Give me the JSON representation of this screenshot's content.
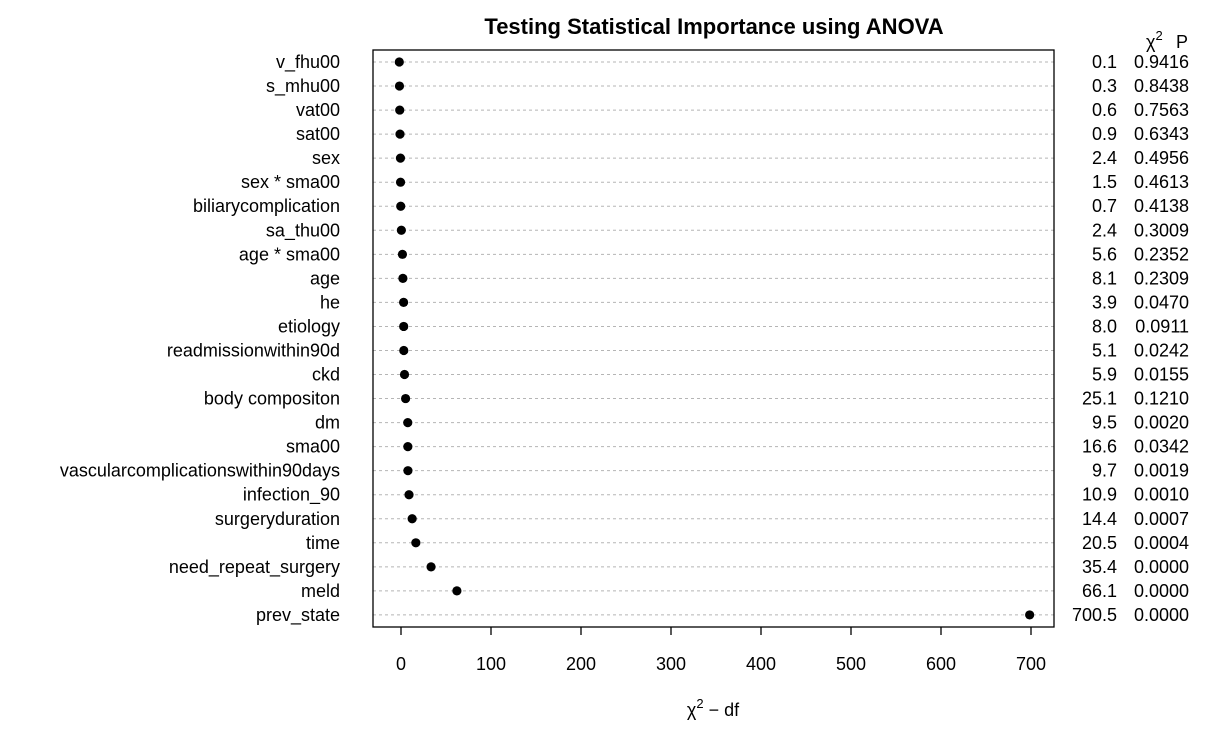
{
  "chart_data": {
    "type": "scatter",
    "title": "Testing Statistical Importance using ANOVA",
    "xlabel": {
      "sym": "χ",
      "sup": "2",
      "rest": " − df"
    },
    "col_headers": {
      "chi2": {
        "sym": "χ",
        "sup": "2"
      },
      "p": "P"
    },
    "xlim": [
      -30,
      730
    ],
    "xticks": [
      0,
      100,
      200,
      300,
      400,
      500,
      600,
      700
    ],
    "grid": true,
    "rows": [
      {
        "label": "v_fhu00",
        "value": -1.9,
        "chi2": "0.1",
        "p": "0.9416"
      },
      {
        "label": "s_mhu00",
        "value": -1.7,
        "chi2": "0.3",
        "p": "0.8438"
      },
      {
        "label": "vat00",
        "value": -1.4,
        "chi2": "0.6",
        "p": "0.7563"
      },
      {
        "label": "sat00",
        "value": -1.1,
        "chi2": "0.9",
        "p": "0.6343"
      },
      {
        "label": "sex",
        "value": -0.6,
        "chi2": "2.4",
        "p": "0.4956"
      },
      {
        "label": "sex * sma00",
        "value": -0.5,
        "chi2": "1.5",
        "p": "0.4613"
      },
      {
        "label": "biliarycomplication",
        "value": -0.3,
        "chi2": "0.7",
        "p": "0.4138"
      },
      {
        "label": "sa_thu00",
        "value": 0.4,
        "chi2": "2.4",
        "p": "0.3009"
      },
      {
        "label": "age * sma00",
        "value": 1.6,
        "chi2": "5.6",
        "p": "0.2352"
      },
      {
        "label": "age",
        "value": 2.1,
        "chi2": "8.1",
        "p": "0.2309"
      },
      {
        "label": "he",
        "value": 2.9,
        "chi2": "3.9",
        "p": "0.0470"
      },
      {
        "label": "etiology",
        "value": 3.0,
        "chi2": "8.0",
        "p": "0.0911"
      },
      {
        "label": "readmissionwithin90d",
        "value": 3.1,
        "chi2": "5.1",
        "p": "0.0242"
      },
      {
        "label": "ckd",
        "value": 3.9,
        "chi2": "5.9",
        "p": "0.0155"
      },
      {
        "label": "body compositon",
        "value": 5.1,
        "chi2": "25.1",
        "p": "0.1210"
      },
      {
        "label": "dm",
        "value": 7.5,
        "chi2": "9.5",
        "p": "0.0020"
      },
      {
        "label": "sma00",
        "value": 7.6,
        "chi2": "16.6",
        "p": "0.0342"
      },
      {
        "label": "vascularcomplicationswithin90days",
        "value": 7.7,
        "chi2": "9.7",
        "p": "0.0019"
      },
      {
        "label": "infection_90",
        "value": 8.9,
        "chi2": "10.9",
        "p": "0.0010"
      },
      {
        "label": "surgeryduration",
        "value": 12.4,
        "chi2": "14.4",
        "p": "0.0007"
      },
      {
        "label": "time",
        "value": 16.5,
        "chi2": "20.5",
        "p": "0.0004"
      },
      {
        "label": "need_repeat_surgery",
        "value": 33.4,
        "chi2": "35.4",
        "p": "0.0000"
      },
      {
        "label": "meld",
        "value": 62.1,
        "chi2": "66.1",
        "p": "0.0000"
      },
      {
        "label": "prev_state",
        "value": 698.5,
        "chi2": "700.5",
        "p": "0.0000"
      }
    ]
  }
}
